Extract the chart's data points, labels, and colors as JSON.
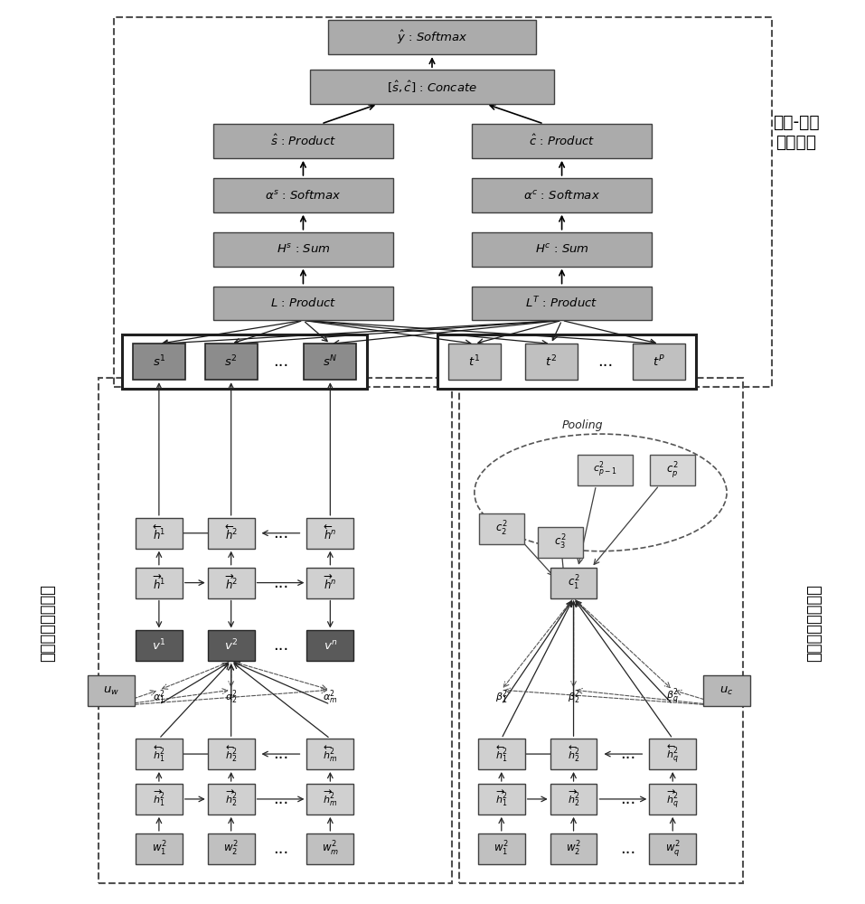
{
  "bg_color": "#ffffff",
  "box_gray_dark": "#8c8c8c",
  "box_gray_med": "#aaaaaa",
  "box_gray_light": "#c0c0c0",
  "box_gray_lighter": "#d2d2d2",
  "box_dark": "#5a5a5a",
  "labels": {
    "y_hat_softmax": "$\\hat{y}$ : $Softmax$",
    "concate": "$[\\hat{s},\\hat{c}]$ : $Concate$",
    "s_product": "$\\hat{s}$ : $Product$",
    "c_product": "$\\hat{c}$ : $Product$",
    "alpha_s_softmax": "$\\alpha^{s}$ : $Softmax$",
    "alpha_c_softmax": "$\\alpha^{c}$ : $Softmax$",
    "Hs_sum": "$H^{s}$ : $Sum$",
    "Hc_sum": "$H^{c}$ : $Sum$",
    "L_product": "$L$ : $Product$",
    "LT_product": "$L^{T}$ : $Product$",
    "s1": "$s^{1}$",
    "s2": "$s^{2}$",
    "sN": "$s^{N}$",
    "t1": "$t^{1}$",
    "t2": "$t^{2}$",
    "tP": "$t^{P}$",
    "h_back1": "$\\overleftarrow{h}^{1}$",
    "h_back2": "$\\overleftarrow{h}^{2}$",
    "h_backn": "$\\overleftarrow{h}^{n}$",
    "h_fwd1": "$\\overrightarrow{h}^{1}$",
    "h_fwd2": "$\\overrightarrow{h}^{2}$",
    "h_fwdn": "$\\overrightarrow{h}^{n}$",
    "v1": "$v^{1}$",
    "v2": "$v^{2}$",
    "vn": "$v^{n}$",
    "uw": "$u_{w}$",
    "uc": "$u_{c}$",
    "alpha1_2": "$\\alpha^{2}_{1}$",
    "alpha2_2": "$\\alpha^{2}_{2}$",
    "alpham_2": "$\\alpha^{2}_{m}$",
    "beta1_2": "$\\beta^{2}_{1}$",
    "beta2_2": "$\\beta^{2}_{2}$",
    "betaq_2": "$\\beta^{2}_{q}$",
    "h_back1_2": "$\\overleftarrow{h}^{2}_{1}$",
    "h_back2_2": "$\\overleftarrow{h}^{2}_{2}$",
    "h_backm_2": "$\\overleftarrow{h}^{2}_{m}$",
    "h_fwd1_2": "$\\overrightarrow{h}^{2}_{1}$",
    "h_fwd2_2": "$\\overrightarrow{h}^{2}_{2}$",
    "h_fwdm_2": "$\\overrightarrow{h}^{2}_{m}$",
    "w1_2": "$w^{2}_{1}$",
    "w2_2": "$w^{2}_{2}$",
    "wm_2": "$w^{2}_{m}$",
    "h_back1_2r": "$\\overleftarrow{h}^{2}_{1}$",
    "h_back2_2r": "$\\overleftarrow{h}^{2}_{2}$",
    "h_backq_2r": "$\\overleftarrow{h}^{2}_{q}$",
    "h_fwd1_2r": "$\\overrightarrow{h}^{2}_{1}$",
    "h_fwd2_2r": "$\\overrightarrow{h}^{2}_{2}$",
    "h_fwdq_2r": "$\\overrightarrow{h}^{2}_{q}$",
    "w1_2r": "$w^{2}_{1}$",
    "w2_2r": "$w^{2}_{2}$",
    "wq_2r": "$w^{2}_{q}$",
    "c1_2": "$c^{2}_{1}$",
    "c2_2": "$c^{2}_{2}$",
    "c3_2": "$c^{2}_{3}$",
    "cp1_2": "$c^{2}_{p-1}$",
    "cp_2": "$c^{2}_{p}$",
    "pooling": "Pooling",
    "label_news_content": "新闻文本内容处理",
    "label_comment_text": "评论文本信息处理",
    "label_news_comment": "新闻-评论\n协同处理"
  }
}
